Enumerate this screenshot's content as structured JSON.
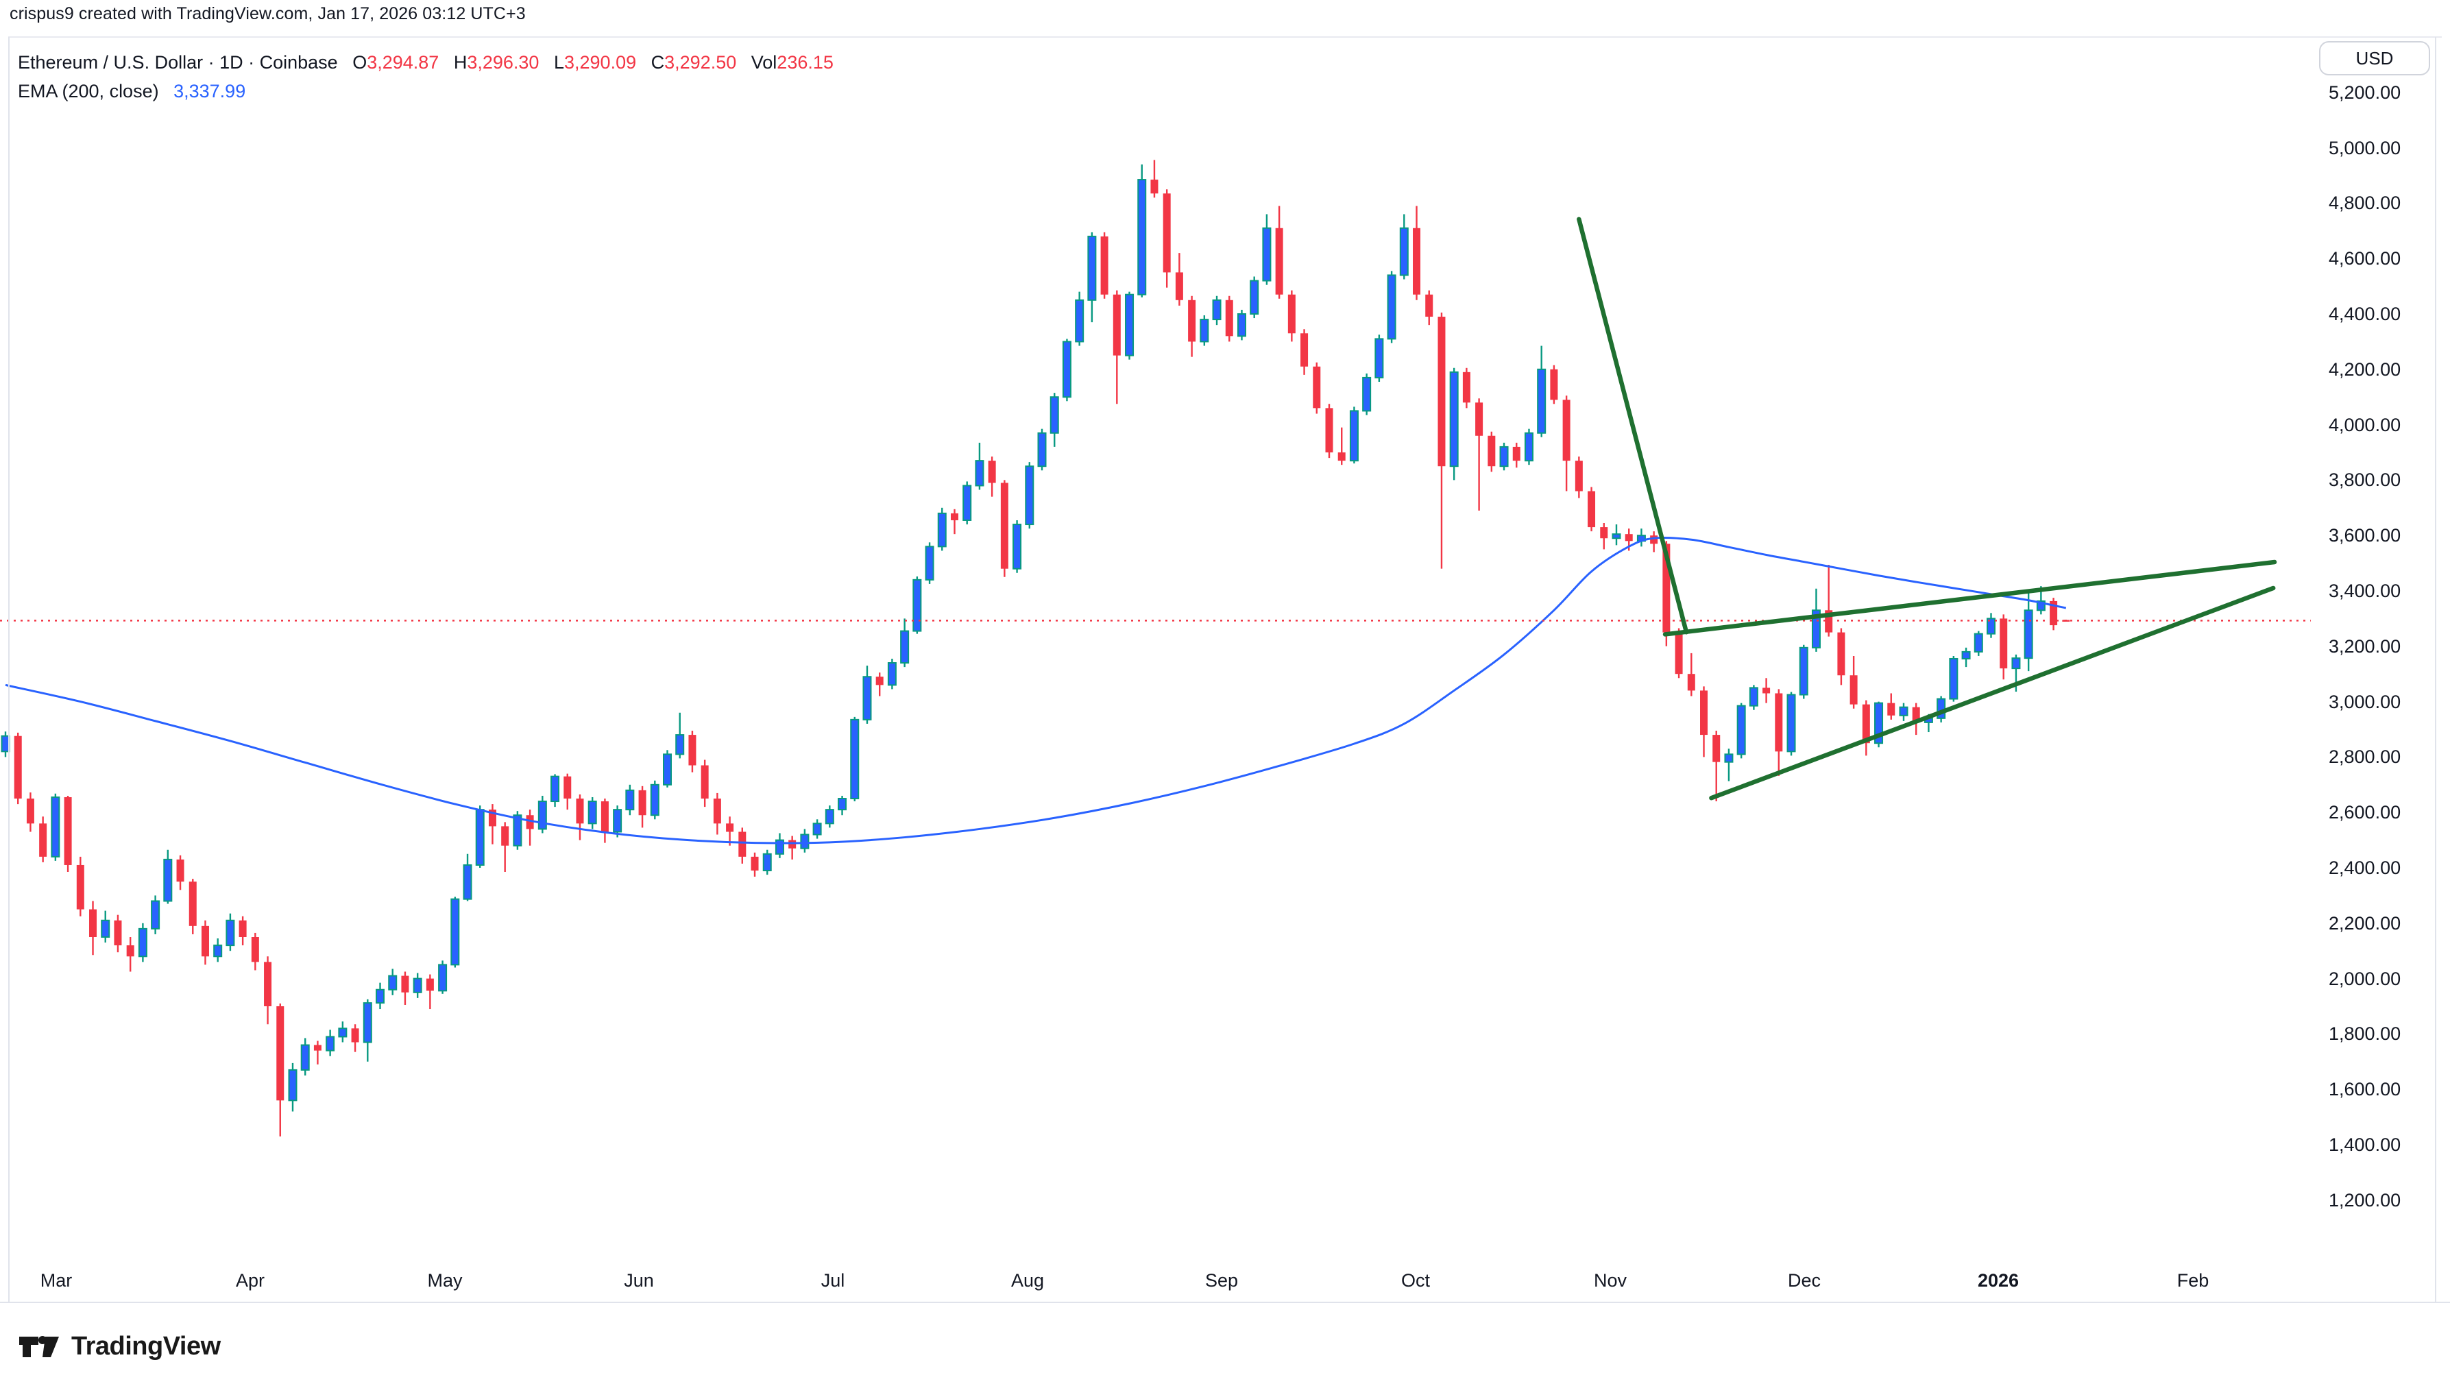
{
  "header": {
    "attribution": "crispus9 created with TradingView.com, Jan 17, 2026 03:12 UTC+3",
    "symbol_line": {
      "title": "Ethereum / U.S. Dollar · 1D · Coinbase",
      "o_label": "O",
      "o_value": "3,294.87",
      "h_label": "H",
      "h_value": "3,296.30",
      "l_label": "L",
      "l_value": "3,290.09",
      "c_label": "C",
      "c_value": "3,292.50",
      "vol_label": "Vol",
      "vol_value": "236.15"
    },
    "ema_line": {
      "label": "EMA (200, close)",
      "value": "3,337.99"
    }
  },
  "axis": {
    "currency": "USD",
    "price_ticks": [
      "5,200.00",
      "5,000.00",
      "4,800.00",
      "4,600.00",
      "4,400.00",
      "4,200.00",
      "4,000.00",
      "3,800.00",
      "3,600.00",
      "3,400.00",
      "3,200.00",
      "3,000.00",
      "2,800.00",
      "2,600.00",
      "2,400.00",
      "2,200.00",
      "2,000.00",
      "1,800.00",
      "1,600.00",
      "1,400.00",
      "1,200.00"
    ],
    "months": [
      {
        "label": "Mar",
        "x": 82
      },
      {
        "label": "Apr",
        "x": 365
      },
      {
        "label": "May",
        "x": 649
      },
      {
        "label": "Jun",
        "x": 932
      },
      {
        "label": "Jul",
        "x": 1215
      },
      {
        "label": "Aug",
        "x": 1499
      },
      {
        "label": "Sep",
        "x": 1782
      },
      {
        "label": "Oct",
        "x": 2065
      },
      {
        "label": "Nov",
        "x": 2349
      },
      {
        "label": "Dec",
        "x": 2632
      },
      {
        "label": "2026",
        "x": 2915,
        "bold": true
      },
      {
        "label": "Feb",
        "x": 3199
      }
    ]
  },
  "logo": {
    "text": "TradingView"
  },
  "chart_data": {
    "type": "candlestick",
    "title": "Ethereum / U.S. Dollar",
    "interval": "1D",
    "exchange": "Coinbase",
    "ylim": [
      1200,
      5200
    ],
    "grid": false,
    "legend_position": "top-left",
    "last_bar": {
      "open": 3294.87,
      "high": 3296.3,
      "low": 3290.09,
      "close": 3292.5,
      "volume": 236.15
    },
    "price_line": {
      "price": 3292.5,
      "style": "dotted",
      "x_end_index": 184.6
    },
    "ema": {
      "period": 200,
      "source": "close",
      "value": 3337.99,
      "points": [
        [
          0,
          3060
        ],
        [
          6,
          3000
        ],
        [
          12,
          2930
        ],
        [
          18,
          2858
        ],
        [
          24,
          2780
        ],
        [
          30,
          2702
        ],
        [
          36,
          2630
        ],
        [
          42,
          2570
        ],
        [
          48,
          2528
        ],
        [
          54,
          2502
        ],
        [
          60,
          2490
        ],
        [
          66,
          2492
        ],
        [
          72,
          2510
        ],
        [
          78,
          2540
        ],
        [
          84,
          2580
        ],
        [
          90,
          2632
        ],
        [
          96,
          2695
        ],
        [
          102,
          2768
        ],
        [
          108,
          2848
        ],
        [
          112,
          2920
        ],
        [
          116,
          3040
        ],
        [
          120,
          3170
        ],
        [
          124,
          3330
        ],
        [
          127,
          3470
        ],
        [
          130,
          3560
        ],
        [
          132,
          3590
        ],
        [
          135,
          3585
        ],
        [
          138,
          3558
        ],
        [
          141,
          3530
        ],
        [
          144,
          3505
        ],
        [
          147,
          3480
        ],
        [
          150,
          3455
        ],
        [
          153,
          3432
        ],
        [
          156,
          3410
        ],
        [
          159,
          3388
        ],
        [
          162,
          3366
        ],
        [
          165,
          3338
        ]
      ]
    },
    "trendlines": [
      {
        "name": "steep-decline",
        "from": [
          126,
          4742
        ],
        "to": [
          134.6,
          3251
        ]
      },
      {
        "name": "rising-resistance",
        "from": [
          132.9,
          3243
        ],
        "to": [
          181.7,
          3504
        ]
      },
      {
        "name": "rising-support",
        "from": [
          136.6,
          2652
        ],
        "to": [
          181.6,
          3410
        ]
      }
    ],
    "candles": [
      [
        2820,
        2892,
        2800,
        2876
      ],
      [
        2876,
        2888,
        2630,
        2650
      ],
      [
        2650,
        2672,
        2530,
        2560
      ],
      [
        2560,
        2585,
        2420,
        2440
      ],
      [
        2440,
        2668,
        2425,
        2655
      ],
      [
        2655,
        2660,
        2385,
        2410
      ],
      [
        2410,
        2440,
        2225,
        2250
      ],
      [
        2250,
        2280,
        2085,
        2150
      ],
      [
        2150,
        2245,
        2130,
        2210
      ],
      [
        2210,
        2230,
        2095,
        2120
      ],
      [
        2120,
        2150,
        2025,
        2080
      ],
      [
        2080,
        2200,
        2060,
        2180
      ],
      [
        2180,
        2300,
        2160,
        2280
      ],
      [
        2280,
        2465,
        2270,
        2430
      ],
      [
        2430,
        2445,
        2320,
        2350
      ],
      [
        2350,
        2360,
        2160,
        2190
      ],
      [
        2190,
        2210,
        2050,
        2080
      ],
      [
        2080,
        2145,
        2060,
        2120
      ],
      [
        2120,
        2235,
        2100,
        2210
      ],
      [
        2210,
        2225,
        2120,
        2150
      ],
      [
        2150,
        2165,
        2030,
        2060
      ],
      [
        2060,
        2080,
        1835,
        1900
      ],
      [
        1900,
        1910,
        1430,
        1560
      ],
      [
        1560,
        1695,
        1520,
        1670
      ],
      [
        1670,
        1785,
        1650,
        1760
      ],
      [
        1760,
        1775,
        1690,
        1740
      ],
      [
        1740,
        1815,
        1720,
        1790
      ],
      [
        1790,
        1845,
        1770,
        1820
      ],
      [
        1820,
        1835,
        1735,
        1770
      ],
      [
        1770,
        1925,
        1700,
        1912
      ],
      [
        1912,
        1985,
        1890,
        1960
      ],
      [
        1960,
        2035,
        1940,
        2010
      ],
      [
        2010,
        2025,
        1905,
        1950
      ],
      [
        1950,
        2020,
        1930,
        2000
      ],
      [
        2000,
        2015,
        1890,
        1956
      ],
      [
        1956,
        2065,
        1945,
        2050
      ],
      [
        2050,
        2295,
        2040,
        2287
      ],
      [
        2287,
        2450,
        2280,
        2410
      ],
      [
        2410,
        2625,
        2400,
        2610
      ],
      [
        2610,
        2630,
        2485,
        2550
      ],
      [
        2550,
        2565,
        2385,
        2480
      ],
      [
        2480,
        2605,
        2465,
        2590
      ],
      [
        2590,
        2610,
        2480,
        2540
      ],
      [
        2540,
        2660,
        2525,
        2640
      ],
      [
        2640,
        2738,
        2620,
        2730
      ],
      [
        2730,
        2740,
        2610,
        2650
      ],
      [
        2650,
        2665,
        2500,
        2560
      ],
      [
        2560,
        2655,
        2540,
        2640
      ],
      [
        2640,
        2650,
        2490,
        2530
      ],
      [
        2530,
        2625,
        2510,
        2610
      ],
      [
        2610,
        2700,
        2590,
        2680
      ],
      [
        2680,
        2695,
        2545,
        2590
      ],
      [
        2590,
        2715,
        2575,
        2700
      ],
      [
        2700,
        2825,
        2690,
        2810
      ],
      [
        2810,
        2960,
        2795,
        2880
      ],
      [
        2880,
        2895,
        2745,
        2770
      ],
      [
        2770,
        2790,
        2620,
        2650
      ],
      [
        2650,
        2670,
        2520,
        2560
      ],
      [
        2560,
        2585,
        2480,
        2530
      ],
      [
        2530,
        2545,
        2415,
        2440
      ],
      [
        2440,
        2455,
        2368,
        2390
      ],
      [
        2390,
        2465,
        2375,
        2450
      ],
      [
        2450,
        2525,
        2435,
        2500
      ],
      [
        2500,
        2515,
        2430,
        2470
      ],
      [
        2470,
        2540,
        2455,
        2520
      ],
      [
        2520,
        2575,
        2505,
        2560
      ],
      [
        2560,
        2625,
        2545,
        2610
      ],
      [
        2610,
        2660,
        2590,
        2650
      ],
      [
        2650,
        2945,
        2640,
        2935
      ],
      [
        2935,
        3130,
        2920,
        3090
      ],
      [
        3090,
        3105,
        3020,
        3060
      ],
      [
        3060,
        3155,
        3045,
        3140
      ],
      [
        3140,
        3300,
        3125,
        3255
      ],
      [
        3255,
        3452,
        3245,
        3440
      ],
      [
        3440,
        3575,
        3425,
        3560
      ],
      [
        3560,
        3700,
        3545,
        3680
      ],
      [
        3680,
        3695,
        3605,
        3655
      ],
      [
        3655,
        3795,
        3640,
        3780
      ],
      [
        3780,
        3935,
        3765,
        3870
      ],
      [
        3870,
        3885,
        3740,
        3790
      ],
      [
        3790,
        3800,
        3450,
        3480
      ],
      [
        3480,
        3655,
        3465,
        3640
      ],
      [
        3640,
        3865,
        3625,
        3850
      ],
      [
        3850,
        3985,
        3835,
        3970
      ],
      [
        3970,
        4115,
        3920,
        4100
      ],
      [
        4100,
        4310,
        4085,
        4300
      ],
      [
        4300,
        4480,
        4285,
        4450
      ],
      [
        4450,
        4695,
        4370,
        4680
      ],
      [
        4680,
        4695,
        4455,
        4470
      ],
      [
        4470,
        4485,
        4075,
        4250
      ],
      [
        4250,
        4480,
        4235,
        4470
      ],
      [
        4470,
        4940,
        4460,
        4885
      ],
      [
        4885,
        4956,
        4820,
        4835
      ],
      [
        4835,
        4850,
        4495,
        4550
      ],
      [
        4550,
        4620,
        4430,
        4450
      ],
      [
        4450,
        4465,
        4245,
        4300
      ],
      [
        4300,
        4395,
        4285,
        4380
      ],
      [
        4380,
        4465,
        4360,
        4450
      ],
      [
        4450,
        4465,
        4300,
        4320
      ],
      [
        4320,
        4415,
        4305,
        4400
      ],
      [
        4400,
        4535,
        4385,
        4520
      ],
      [
        4520,
        4760,
        4505,
        4710
      ],
      [
        4710,
        4790,
        4455,
        4470
      ],
      [
        4470,
        4485,
        4300,
        4330
      ],
      [
        4330,
        4345,
        4180,
        4210
      ],
      [
        4210,
        4225,
        4040,
        4060
      ],
      [
        4060,
        4075,
        3880,
        3900
      ],
      [
        3900,
        3990,
        3855,
        3870
      ],
      [
        3870,
        4065,
        3860,
        4050
      ],
      [
        4050,
        4185,
        4035,
        4170
      ],
      [
        4170,
        4325,
        4155,
        4310
      ],
      [
        4310,
        4555,
        4295,
        4540
      ],
      [
        4540,
        4760,
        4525,
        4710
      ],
      [
        4710,
        4790,
        4450,
        4470
      ],
      [
        4470,
        4485,
        4360,
        4390
      ],
      [
        4390,
        4405,
        3480,
        3850
      ],
      [
        3850,
        4205,
        3800,
        4190
      ],
      [
        4190,
        4205,
        4060,
        4080
      ],
      [
        4080,
        4095,
        3690,
        3960
      ],
      [
        3960,
        3975,
        3830,
        3850
      ],
      [
        3850,
        3935,
        3835,
        3920
      ],
      [
        3920,
        3935,
        3845,
        3870
      ],
      [
        3870,
        3985,
        3855,
        3970
      ],
      [
        3970,
        4285,
        3955,
        4200
      ],
      [
        4200,
        4215,
        4075,
        4090
      ],
      [
        4090,
        4105,
        3760,
        3870
      ],
      [
        3870,
        3885,
        3735,
        3760
      ],
      [
        3760,
        3775,
        3615,
        3630
      ],
      [
        3630,
        3645,
        3550,
        3590
      ],
      [
        3590,
        3640,
        3565,
        3605
      ],
      [
        3605,
        3625,
        3545,
        3580
      ],
      [
        3580,
        3625,
        3560,
        3600
      ],
      [
        3600,
        3615,
        3540,
        3570
      ],
      [
        3570,
        3580,
        3200,
        3250
      ],
      [
        3250,
        3265,
        3085,
        3100
      ],
      [
        3100,
        3175,
        3020,
        3040
      ],
      [
        3040,
        3055,
        2800,
        2880
      ],
      [
        2880,
        2895,
        2640,
        2782
      ],
      [
        2782,
        2830,
        2713,
        2810
      ],
      [
        2810,
        2995,
        2795,
        2985
      ],
      [
        2985,
        3060,
        2970,
        3050
      ],
      [
        3050,
        3085,
        2995,
        3030
      ],
      [
        3030,
        3045,
        2732,
        2820
      ],
      [
        2820,
        3035,
        2805,
        3025
      ],
      [
        3025,
        3205,
        3010,
        3195
      ],
      [
        3195,
        3408,
        3180,
        3330
      ],
      [
        3330,
        3494,
        3235,
        3250
      ],
      [
        3250,
        3265,
        3060,
        3095
      ],
      [
        3095,
        3165,
        2975,
        2990
      ],
      [
        2990,
        3005,
        2805,
        2850
      ],
      [
        2850,
        3000,
        2835,
        2995
      ],
      [
        2995,
        3030,
        2935,
        2950
      ],
      [
        2950,
        2995,
        2930,
        2980
      ],
      [
        2980,
        2995,
        2880,
        2925
      ],
      [
        2925,
        2955,
        2890,
        2940
      ],
      [
        2940,
        3020,
        2925,
        3010
      ],
      [
        3010,
        3165,
        3000,
        3155
      ],
      [
        3155,
        3195,
        3125,
        3180
      ],
      [
        3180,
        3255,
        3165,
        3245
      ],
      [
        3245,
        3320,
        3230,
        3300
      ],
      [
        3300,
        3315,
        3080,
        3120
      ],
      [
        3120,
        3170,
        3036,
        3157
      ],
      [
        3157,
        3392,
        3110,
        3330
      ],
      [
        3330,
        3417,
        3315,
        3363
      ],
      [
        3363,
        3375,
        3258,
        3276
      ],
      [
        3295,
        3296,
        3290,
        3292
      ]
    ],
    "colors": {
      "up_body": "#2962FF",
      "up_wick": "#089981",
      "down": "#F23645",
      "ema": "#2962FF",
      "trendline": "#1F7030",
      "price_line": "#F23645",
      "text": "#131722",
      "hairline": "#E0E3EB",
      "background": "#FFFFFF"
    }
  }
}
